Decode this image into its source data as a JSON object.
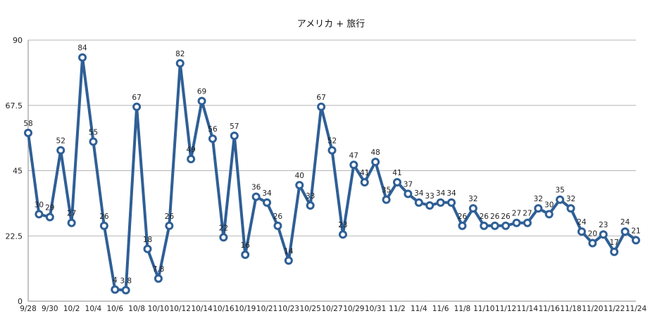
{
  "chart_data": {
    "type": "line",
    "title": "アメリカ + 旅行",
    "xlabel": "",
    "ylabel": "",
    "ylim": [
      0,
      90
    ],
    "yticks": [
      "0",
      "22.5",
      "45",
      "67.5",
      "90"
    ],
    "ytick_values": [
      0,
      22.5,
      45,
      67.5,
      90
    ],
    "grid": true,
    "legend": "none",
    "colors": {
      "line": "#2f5f96",
      "marker_fill": "#ffffff",
      "grid": "#b5b5b5",
      "axis": "#888888"
    },
    "x_tick_labels": [
      "9/28",
      "9/30",
      "10/2",
      "10/4",
      "10/6",
      "10/8",
      "10/10",
      "10/12",
      "10/14",
      "10/16",
      "10/19",
      "10/21",
      "10/23",
      "10/25",
      "10/27",
      "10/29",
      "10/31",
      "11/2",
      "11/4",
      "11/6",
      "11/8",
      "11/10",
      "11/12",
      "11/14",
      "11/16",
      "11/18",
      "11/20",
      "11/22",
      "11/24"
    ],
    "series": [
      {
        "values": [
          58,
          30,
          29,
          52,
          27,
          84,
          55,
          26,
          4,
          3.8,
          67,
          18,
          7.8,
          26,
          82,
          49,
          69,
          56,
          22,
          57,
          16,
          36,
          34,
          26,
          14,
          40,
          33,
          67,
          52,
          23,
          47,
          41,
          48,
          35,
          41,
          37,
          34,
          33,
          34,
          34,
          26,
          32,
          26,
          26,
          26,
          27,
          27,
          32,
          30,
          35,
          32,
          24,
          20,
          23,
          17,
          24,
          21
        ],
        "labels": [
          "58",
          "30",
          "29",
          "52",
          "27",
          "84",
          "55",
          "26",
          "4",
          "3.8",
          "67",
          "18",
          "7.8",
          "26",
          "82",
          "49",
          "69",
          "56",
          "22",
          "57",
          "16",
          "36",
          "34",
          "26",
          "14",
          "40",
          "33",
          "67",
          "52",
          "23",
          "47",
          "41",
          "48",
          "35",
          "41",
          "37",
          "34",
          "33",
          "34",
          "34",
          "26",
          "32",
          "26",
          "26",
          "26",
          "27",
          "27",
          "32",
          "30",
          "35",
          "32",
          "24",
          "20",
          "23",
          "17",
          "24",
          "21"
        ]
      }
    ]
  }
}
